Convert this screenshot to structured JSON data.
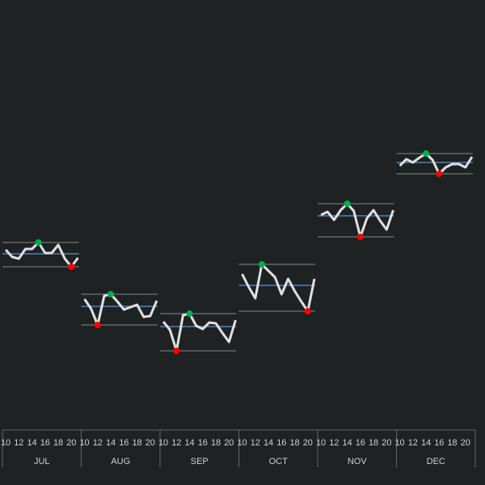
{
  "chart_data": {
    "type": "panel-line",
    "x": [
      10,
      11,
      12,
      13,
      14,
      15,
      16,
      17,
      18,
      19,
      20,
      21
    ],
    "xticks": [
      10,
      12,
      14,
      16,
      18,
      20
    ],
    "xlim": [
      9.5,
      21.5
    ],
    "ylim": [
      0,
      532
    ],
    "line_color": "#e0e0e0",
    "average_color": "#4f81bd",
    "max_color": "#00b050",
    "min_color": "#ff0000",
    "panels": [
      {
        "name": "JUL",
        "values": [
          223,
          214,
          212,
          224,
          224,
          232,
          219,
          219,
          229,
          212,
          202,
          213
        ],
        "average": 218
      },
      {
        "name": "AUG",
        "values": [
          162,
          150,
          130,
          166,
          168,
          159,
          149,
          152,
          155,
          140,
          141,
          160
        ],
        "average": 153
      },
      {
        "name": "SEP",
        "values": [
          134,
          124,
          98,
          142,
          144,
          129,
          125,
          133,
          132,
          120,
          109,
          136
        ],
        "average": 128
      },
      {
        "name": "OCT",
        "values": [
          193,
          177,
          163,
          205,
          197,
          189,
          168,
          187,
          172,
          159,
          147,
          187
        ],
        "average": 179
      },
      {
        "name": "NOV",
        "values": [
          266,
          270,
          260,
          272,
          280,
          271,
          239,
          262,
          272,
          259,
          248,
          272
        ],
        "average": 265
      },
      {
        "name": "DEC",
        "values": [
          327,
          335,
          331,
          337,
          342,
          334,
          317,
          325,
          329,
          329,
          325,
          338
        ],
        "average": 331
      }
    ]
  }
}
